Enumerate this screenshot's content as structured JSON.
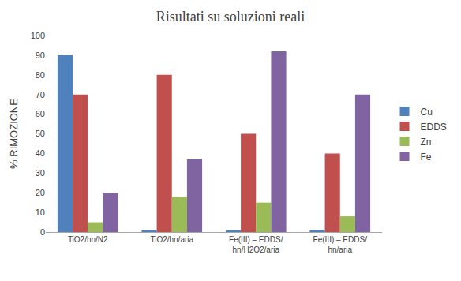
{
  "chart_data": {
    "type": "bar",
    "title": "Risultati su soluzioni reali",
    "y_label": "% RIMOZIONE",
    "categories": [
      "TiO2/hn/N2",
      "TiO2/hn/aria",
      "Fe(III) – EDDS/ hn/H2O2/aria",
      "Fe(III) – EDDS/ hn/aria"
    ],
    "series": [
      {
        "name": "Cu",
        "color": "#4f81bd",
        "values": [
          90,
          1,
          1,
          1
        ]
      },
      {
        "name": "EDDS",
        "color": "#c0504d",
        "values": [
          70,
          80,
          50,
          40
        ]
      },
      {
        "name": "Zn",
        "color": "#9bbb59",
        "values": [
          5,
          18,
          15,
          8
        ]
      },
      {
        "name": "Fe",
        "color": "#8064a2",
        "values": [
          20,
          37,
          92,
          70
        ]
      }
    ],
    "ylim": [
      0,
      100
    ],
    "yticks": [
      0,
      10,
      20,
      30,
      40,
      50,
      60,
      70,
      80,
      90,
      100
    ],
    "grid": false,
    "legend": "right"
  }
}
